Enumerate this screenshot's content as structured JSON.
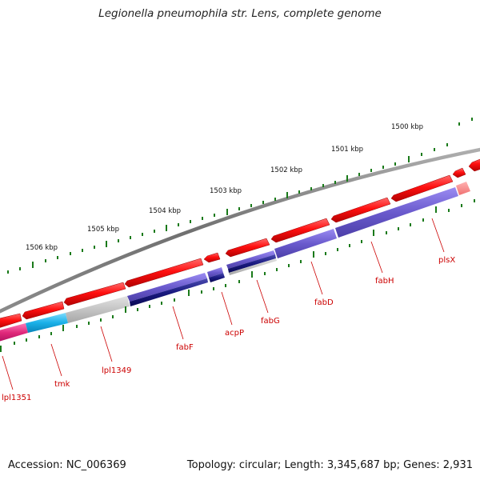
{
  "header": {
    "title": "Legionella pneumophila str. Lens, complete genome"
  },
  "footer": {
    "accession": "Accession: NC_006369",
    "summary": "Topology: circular; Length: 3,345,687 bp; Genes: 2,931"
  },
  "ruler": {
    "tick_labels": [
      "1500 kbp",
      "1501 kbp",
      "1502 kbp",
      "1503 kbp",
      "1504 kbp",
      "1505 kbp",
      "1506 kbp"
    ]
  },
  "genes": [
    "plsX",
    "fabH",
    "fabD",
    "fabG",
    "acpP",
    "fabF",
    "lpl1349",
    "tmk",
    "lpl1351"
  ],
  "colors": {
    "backbone": "#808080",
    "forward_gene": "#ee0000",
    "cds_blue": "#6a5acd",
    "cds_navy": "#1a1a80",
    "cds_grey": "#bbbbbb",
    "cds_cyan": "#1ab0e8",
    "cds_pink": "#e0287a",
    "ruler_tick": "#1a7a1a",
    "gene_label": "#cc0000"
  }
}
